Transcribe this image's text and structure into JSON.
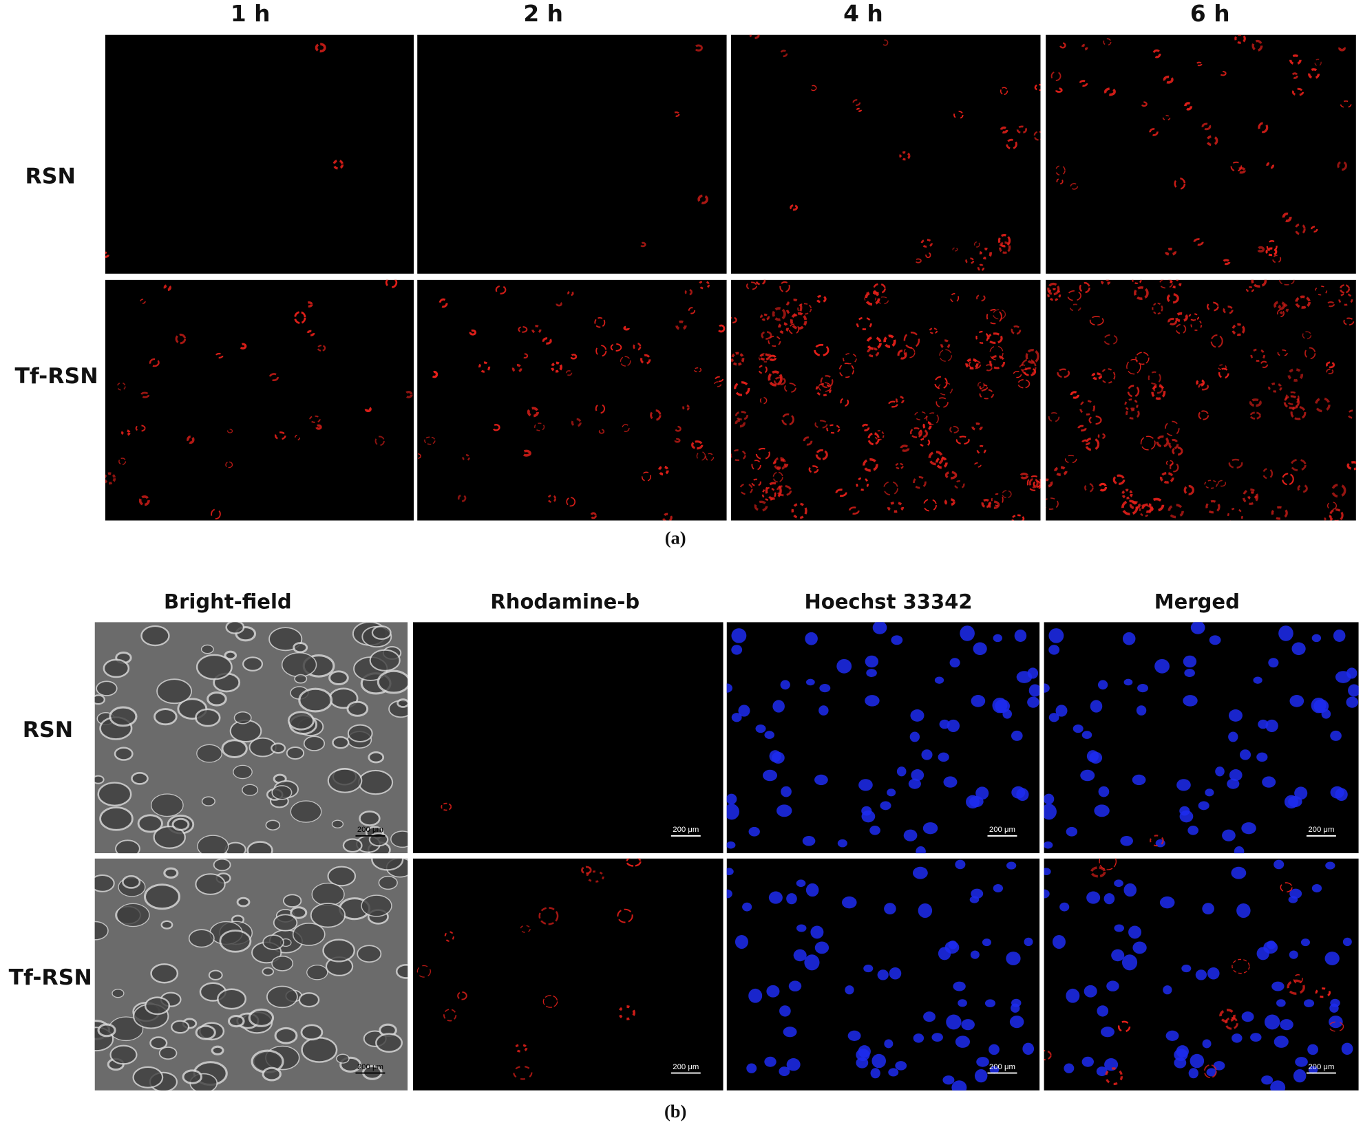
{
  "panel_a": {
    "columns": [
      "1 h",
      "2 h",
      "4 h",
      "6 h"
    ],
    "rows": [
      "RSN",
      "Tf-RSN"
    ],
    "caption": "(a)"
  },
  "panel_b": {
    "columns": [
      "Bright-field",
      "Rhodamine-b",
      "Hoechst 33342",
      "Merged"
    ],
    "rows": [
      "RSN",
      "Tf-RSN"
    ],
    "scale_bar": "200 μm",
    "caption": "(b)"
  }
}
